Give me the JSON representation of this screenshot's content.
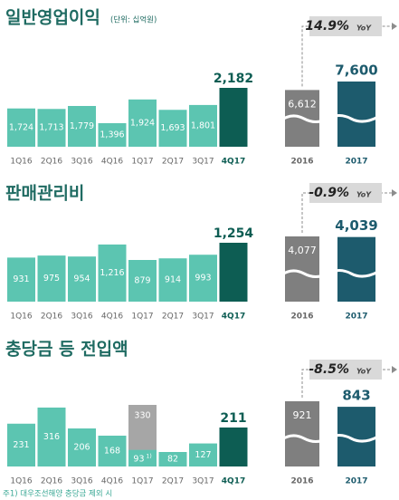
{
  "chart_data": [
    {
      "type": "bar",
      "title": "일반영업이익",
      "subtitle": "(단위: 십억원)",
      "categories": [
        "1Q16",
        "2Q16",
        "3Q16",
        "4Q16",
        "1Q17",
        "2Q17",
        "3Q17",
        "4Q17"
      ],
      "series": [
        {
          "values": [
            1724,
            1713,
            1779,
            1396,
            1924,
            1693,
            1801,
            2182
          ],
          "value_labels": [
            "1,724",
            "1,713",
            "1,779",
            "1,396",
            "1,924",
            "1,693",
            "1,801",
            "2,182"
          ],
          "colors": [
            "#5cc5b1",
            "#5cc5b1",
            "#5cc5b1",
            "#5cc5b1",
            "#5cc5b1",
            "#5cc5b1",
            "#5cc5b1",
            "#0d5d53"
          ]
        }
      ]
    },
    {
      "type": "bar",
      "categories": [
        "2016",
        "2017"
      ],
      "series": [
        {
          "values": [
            6612,
            7600
          ],
          "value_labels": [
            "6,612",
            "7,600"
          ],
          "colors": [
            "#7f7f7f",
            "#1d5b6d"
          ]
        }
      ],
      "annotation": "14.9%",
      "annotation_unit": "YoY"
    },
    {
      "type": "bar",
      "title": "판매관리비",
      "categories": [
        "1Q16",
        "2Q16",
        "3Q16",
        "4Q16",
        "1Q17",
        "2Q17",
        "3Q17",
        "4Q17"
      ],
      "series": [
        {
          "values": [
            931,
            975,
            954,
            1216,
            879,
            914,
            993,
            1254
          ],
          "value_labels": [
            "931",
            "975",
            "954",
            "1,216",
            "879",
            "914",
            "993",
            "1,254"
          ],
          "colors": [
            "#5cc5b1",
            "#5cc5b1",
            "#5cc5b1",
            "#5cc5b1",
            "#5cc5b1",
            "#5cc5b1",
            "#5cc5b1",
            "#0d5d53"
          ]
        }
      ]
    },
    {
      "type": "bar",
      "categories": [
        "2016",
        "2017"
      ],
      "series": [
        {
          "values": [
            4077,
            4039
          ],
          "value_labels": [
            "4,077",
            "4,039"
          ],
          "colors": [
            "#7f7f7f",
            "#1d5b6d"
          ]
        }
      ],
      "annotation": "-0.9%",
      "annotation_unit": "YoY"
    },
    {
      "type": "bar",
      "title": "충당금 등 전입액",
      "categories": [
        "1Q16",
        "2Q16",
        "3Q16",
        "4Q16",
        "1Q17",
        "2Q17",
        "3Q17",
        "4Q17"
      ],
      "series": [
        {
          "values": [
            null,
            null,
            null,
            null,
            330,
            null,
            null,
            null
          ],
          "colors": [
            "#a6a6a6",
            "#a6a6a6",
            "#a6a6a6",
            "#a6a6a6",
            "#a6a6a6",
            "#a6a6a6",
            "#a6a6a6",
            "#a6a6a6"
          ]
        },
        {
          "values": [
            231,
            316,
            206,
            168,
            93,
            82,
            127,
            211
          ],
          "value_notes": [
            null,
            null,
            null,
            null,
            "1)",
            null,
            null,
            null
          ],
          "colors": [
            "#5cc5b1",
            "#5cc5b1",
            "#5cc5b1",
            "#5cc5b1",
            "#5cc5b1",
            "#5cc5b1",
            "#5cc5b1",
            "#0d5d53"
          ]
        }
      ]
    },
    {
      "type": "bar",
      "categories": [
        "2016",
        "2017"
      ],
      "series": [
        {
          "values": [
            921,
            843
          ],
          "colors": [
            "#7f7f7f",
            "#1d5b6d"
          ]
        }
      ],
      "annotation": "-8.5%",
      "annotation_unit": "YoY"
    }
  ],
  "footnote": "주1) 대우조선해양 충당금 제외 시"
}
